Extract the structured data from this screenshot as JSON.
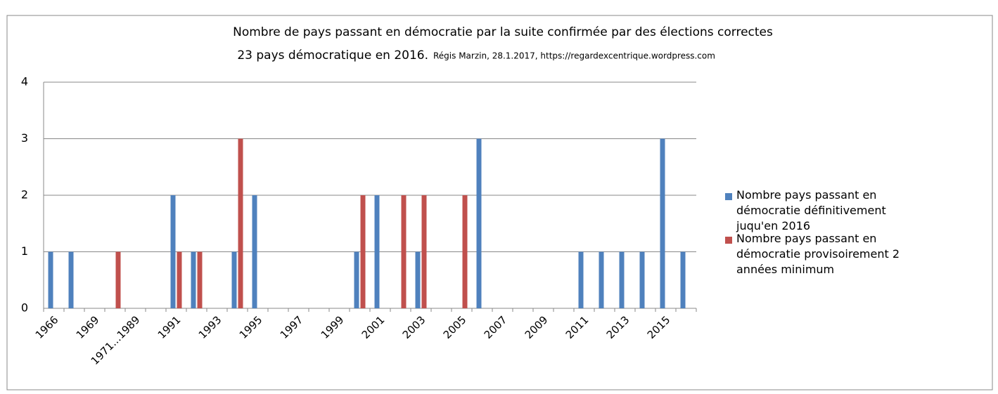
{
  "chart_data": {
    "type": "bar",
    "title": "Nombre de pays passant en démocratie par la suite confirmée par des élections correctes",
    "subtitle": "23 pays démocratique  en 2016.",
    "credit": "Régis Marzin, 28.1.2017, https://regardexcentrique.wordpress.com",
    "categories": [
      "1966",
      null,
      "1969",
      null,
      "1971...1989",
      null,
      "1991",
      null,
      "1993",
      null,
      "1995",
      null,
      "1997",
      null,
      "1999",
      null,
      "2001",
      null,
      "2003",
      null,
      "2005",
      null,
      "2007",
      null,
      "2009",
      null,
      "2011",
      null,
      "2013",
      null,
      "2015",
      null
    ],
    "series": [
      {
        "name": "Nombre pays passant en démocratie définitivement juqu'en 2016",
        "color": "#4f81bd",
        "values": [
          1,
          1,
          0,
          0,
          0,
          0,
          2,
          1,
          0,
          1,
          2,
          0,
          0,
          0,
          0,
          1,
          2,
          0,
          1,
          0,
          0,
          3,
          0,
          0,
          0,
          0,
          1,
          1,
          1,
          1,
          3,
          1
        ]
      },
      {
        "name": "Nombre pays passant en démocratie provisoirement 2 années minimum",
        "color": "#c0504d",
        "values": [
          0,
          0,
          0,
          1,
          0,
          0,
          1,
          1,
          0,
          3,
          0,
          0,
          0,
          0,
          0,
          2,
          0,
          2,
          2,
          0,
          2,
          0,
          0,
          0,
          0,
          0,
          0,
          0,
          0,
          0,
          0,
          0
        ]
      }
    ],
    "ylim": [
      0,
      4
    ],
    "yticks": [
      0,
      1,
      2,
      3,
      4
    ],
    "grid": true,
    "legend": "right"
  }
}
